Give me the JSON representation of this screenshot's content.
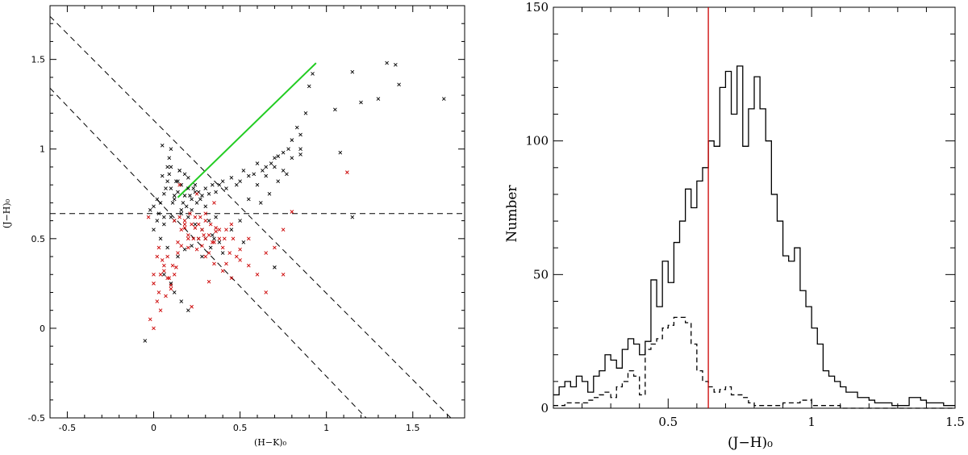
{
  "chart_data": [
    {
      "type": "scatter",
      "title": "",
      "xlabel": "(H−K)₀",
      "ylabel": "(J−H)₀",
      "xlim": [
        -0.6,
        1.8
      ],
      "ylim": [
        -0.5,
        1.8
      ],
      "x_ticks": [
        "-0.5",
        "0",
        "0.5",
        "1",
        "1.5"
      ],
      "x_tick_values": [
        -0.5,
        0,
        0.5,
        1,
        1.5
      ],
      "y_ticks": [
        "-0.5",
        "0",
        "0.5",
        "1",
        "1.5"
      ],
      "y_tick_values": [
        -0.5,
        0,
        0.5,
        1,
        1.5
      ],
      "grid": false,
      "colors": {
        "black_points": "#000000",
        "red_points": "#cc0000",
        "green_line": "#22cc22",
        "lines": "#000000"
      },
      "lines": [
        {
          "name": "",
          "style": "dashed",
          "color": "#000000",
          "x": [
            -0.6,
            1.8
          ],
          "y": [
            0.64,
            0.64
          ]
        },
        {
          "name": "",
          "style": "dashed",
          "color": "#000000",
          "x": [
            -0.6,
            1.72
          ],
          "y": [
            1.74,
            -0.5
          ]
        },
        {
          "name": "",
          "style": "dashed",
          "color": "#000000",
          "x": [
            -0.6,
            1.23
          ],
          "y": [
            1.34,
            -0.5
          ]
        },
        {
          "name": "",
          "style": "solid",
          "color": "#22cc22",
          "x": [
            0.14,
            0.94
          ],
          "y": [
            0.73,
            1.48
          ]
        }
      ],
      "series": [
        {
          "name": "",
          "color": "#000000",
          "marker": "x",
          "x": [
            0.92,
            0.9,
            0.88,
            1.15,
            1.35,
            1.4,
            1.42,
            1.68,
            1.3,
            1.2,
            1.05,
            1.08,
            0.83,
            0.85,
            0.8,
            0.78,
            0.75,
            0.72,
            0.7,
            0.68,
            0.65,
            0.63,
            0.6,
            0.58,
            0.55,
            0.52,
            0.5,
            0.48,
            0.45,
            0.42,
            0.4,
            0.38,
            0.36,
            0.34,
            0.32,
            0.3,
            0.28,
            0.26,
            0.24,
            0.22,
            0.2,
            0.18,
            0.16,
            0.14,
            0.12,
            0.1,
            0.08,
            0.06,
            0.04,
            0.02,
            0.0,
            -0.02,
            0.05,
            0.1,
            0.15,
            0.2,
            0.25,
            0.3,
            0.07,
            0.12,
            0.17,
            0.22,
            0.27,
            0.09,
            0.14,
            0.19,
            0.24,
            0.11,
            0.16,
            0.21,
            0.13,
            0.18,
            0.23,
            0.08,
            0.03,
            0.06,
            0.55,
            0.6,
            0.65,
            0.7,
            0.75,
            0.8,
            0.85,
            0.62,
            0.67,
            0.72,
            0.77,
            0.5,
            0.45,
            0.35,
            0.33,
            0.28,
            0.4,
            0.52,
            0.7,
            0.02,
            0.06,
            0.1,
            0.0,
            0.04,
            0.08,
            0.12,
            0.16,
            0.2,
            0.24,
            0.28,
            0.32,
            0.36,
            0.3,
            0.34,
            0.38,
            0.26,
            0.22,
            0.18,
            0.14,
            0.1,
            0.06,
            0.12,
            0.16,
            0.2,
            0.85,
            0.1,
            1.15,
            0.15,
            0.05,
            0.09,
            -0.05
          ],
          "y": [
            1.42,
            1.35,
            1.2,
            1.43,
            1.48,
            1.47,
            1.36,
            1.28,
            1.28,
            1.26,
            1.22,
            0.98,
            1.12,
            1.08,
            1.05,
            1.0,
            0.98,
            0.96,
            0.95,
            0.92,
            0.9,
            0.88,
            0.92,
            0.86,
            0.85,
            0.88,
            0.82,
            0.8,
            0.84,
            0.78,
            0.82,
            0.8,
            0.76,
            0.8,
            0.75,
            0.78,
            0.74,
            0.76,
            0.8,
            0.72,
            0.78,
            0.74,
            0.8,
            0.76,
            0.72,
            0.78,
            0.82,
            0.75,
            0.7,
            0.72,
            0.68,
            0.66,
            0.85,
            0.9,
            0.88,
            0.84,
            0.7,
            0.68,
            0.78,
            0.74,
            0.7,
            0.66,
            0.72,
            0.86,
            0.82,
            0.68,
            0.76,
            0.7,
            0.66,
            0.74,
            0.82,
            0.86,
            0.78,
            0.9,
            0.64,
            0.62,
            0.72,
            0.8,
            0.85,
            0.9,
            0.88,
            0.95,
            1.0,
            0.7,
            0.75,
            0.82,
            0.86,
            0.6,
            0.55,
            0.5,
            0.45,
            0.4,
            0.42,
            0.48,
            0.34,
            0.6,
            0.58,
            0.62,
            0.55,
            0.5,
            0.45,
            0.6,
            0.64,
            0.62,
            0.58,
            0.55,
            0.6,
            0.62,
            0.5,
            0.52,
            0.48,
            0.5,
            0.46,
            0.44,
            0.4,
            0.25,
            0.3,
            0.2,
            0.15,
            0.1,
            0.97,
            1.0,
            0.62,
            0.88,
            1.02,
            0.95,
            -0.07
          ]
        },
        {
          "name": "",
          "color": "#cc0000",
          "marker": "x",
          "x": [
            -0.02,
            0.0,
            0.02,
            0.04,
            0.06,
            0.08,
            0.1,
            0.12,
            0.14,
            0.16,
            0.18,
            0.2,
            0.22,
            0.24,
            0.26,
            0.28,
            0.3,
            0.32,
            0.34,
            0.36,
            0.38,
            0.4,
            0.42,
            0.44,
            0.46,
            0.48,
            0.5,
            0.12,
            0.15,
            0.18,
            0.21,
            0.24,
            0.27,
            0.3,
            0.33,
            0.36,
            0.2,
            0.23,
            0.26,
            0.29,
            0.32,
            0.35,
            0.38,
            0.41,
            0.0,
            0.03,
            0.06,
            0.09,
            0.05,
            0.08,
            0.11,
            0.14,
            0.02,
            0.04,
            0.07,
            0.1,
            0.13,
            0.16,
            0.2,
            0.25,
            0.3,
            0.35,
            0.4,
            0.45,
            0.5,
            0.55,
            0.6,
            0.65,
            0.7,
            0.75,
            0.8,
            0.15,
            0.25,
            0.35,
            -0.03,
            0.3,
            0.45,
            0.55,
            0.65,
            0.75,
            0.18,
            0.28,
            1.12,
            0.03,
            0.0,
            0.22,
            0.32,
            0.42
          ],
          "y": [
            0.05,
            0.25,
            0.4,
            0.3,
            0.35,
            0.28,
            0.22,
            0.3,
            0.48,
            0.55,
            0.6,
            0.52,
            0.58,
            0.62,
            0.5,
            0.55,
            0.6,
            0.52,
            0.48,
            0.56,
            0.5,
            0.45,
            0.55,
            0.42,
            0.5,
            0.4,
            0.44,
            0.6,
            0.62,
            0.58,
            0.64,
            0.56,
            0.62,
            0.5,
            0.58,
            0.54,
            0.45,
            0.5,
            0.58,
            0.52,
            0.42,
            0.48,
            0.55,
            0.5,
            0.3,
            0.2,
            0.32,
            0.28,
            0.38,
            0.4,
            0.35,
            0.42,
            0.15,
            0.1,
            0.18,
            0.24,
            0.34,
            0.46,
            0.5,
            0.44,
            0.4,
            0.36,
            0.32,
            0.28,
            0.38,
            0.35,
            0.3,
            0.42,
            0.45,
            0.55,
            0.65,
            0.8,
            0.75,
            0.7,
            0.62,
            0.64,
            0.58,
            0.5,
            0.2,
            0.3,
            0.56,
            0.46,
            0.87,
            0.45,
            0.0,
            0.12,
            0.26,
            0.36
          ]
        }
      ]
    },
    {
      "type": "line",
      "title": "",
      "xlabel": "(J−H)₀",
      "ylabel": "Number",
      "xlim": [
        0.1,
        1.5
      ],
      "ylim": [
        0,
        150
      ],
      "x_ticks": [
        "0.5",
        "1",
        "1.5"
      ],
      "x_tick_values": [
        0.5,
        1,
        1.5
      ],
      "y_ticks": [
        "0",
        "50",
        "100",
        "150"
      ],
      "y_tick_values": [
        0,
        50,
        100,
        150
      ],
      "grid": false,
      "vline": {
        "x": 0.64,
        "color": "#cc0000"
      },
      "series": [
        {
          "name": "",
          "style": "solid",
          "color": "#000000",
          "bin_edges": [
            0.1,
            0.12,
            0.14,
            0.16,
            0.18,
            0.2,
            0.22,
            0.24,
            0.26,
            0.28,
            0.3,
            0.32,
            0.34,
            0.36,
            0.38,
            0.4,
            0.42,
            0.44,
            0.46,
            0.48,
            0.5,
            0.52,
            0.54,
            0.56,
            0.58,
            0.6,
            0.62,
            0.64,
            0.66,
            0.68,
            0.7,
            0.72,
            0.74,
            0.76,
            0.78,
            0.8,
            0.82,
            0.84,
            0.86,
            0.88,
            0.9,
            0.92,
            0.94,
            0.96,
            0.98,
            1.0,
            1.02,
            1.04,
            1.06,
            1.08,
            1.1,
            1.12,
            1.14,
            1.16,
            1.18,
            1.2,
            1.22,
            1.24,
            1.26,
            1.28,
            1.3,
            1.32,
            1.34,
            1.36,
            1.38,
            1.4,
            1.42,
            1.44,
            1.46,
            1.48,
            1.5
          ],
          "counts": [
            5,
            8,
            10,
            8,
            12,
            10,
            6,
            12,
            14,
            20,
            18,
            15,
            22,
            26,
            24,
            20,
            25,
            48,
            38,
            55,
            47,
            62,
            70,
            82,
            75,
            85,
            90,
            100,
            98,
            120,
            126,
            110,
            128,
            98,
            112,
            124,
            112,
            100,
            80,
            70,
            57,
            55,
            60,
            44,
            38,
            30,
            24,
            14,
            12,
            10,
            8,
            6,
            6,
            4,
            4,
            3,
            2,
            2,
            2,
            1,
            1,
            1,
            4,
            4,
            3,
            2,
            2,
            2,
            1,
            1
          ]
        },
        {
          "name": "",
          "style": "dashed",
          "color": "#000000",
          "bin_edges": [
            0.1,
            0.12,
            0.14,
            0.16,
            0.18,
            0.2,
            0.22,
            0.24,
            0.26,
            0.28,
            0.3,
            0.32,
            0.34,
            0.36,
            0.38,
            0.4,
            0.42,
            0.44,
            0.46,
            0.48,
            0.5,
            0.52,
            0.54,
            0.56,
            0.58,
            0.6,
            0.62,
            0.64,
            0.66,
            0.68,
            0.7,
            0.72,
            0.74,
            0.76,
            0.78,
            0.8,
            0.82,
            0.84,
            0.86,
            0.88,
            0.9,
            0.92,
            0.94,
            0.96,
            0.98,
            1.0,
            1.02,
            1.04,
            1.06,
            1.08,
            1.1,
            1.12,
            1.14,
            1.16,
            1.18,
            1.2,
            1.22,
            1.24,
            1.26,
            1.28,
            1.3,
            1.32,
            1.34,
            1.36,
            1.38,
            1.4,
            1.42,
            1.44,
            1.46,
            1.48,
            1.5
          ],
          "counts": [
            1,
            1,
            2,
            2,
            2,
            2,
            3,
            4,
            5,
            6,
            4,
            8,
            10,
            14,
            12,
            5,
            22,
            24,
            26,
            30,
            31,
            34,
            34,
            32,
            24,
            14,
            10,
            8,
            6,
            7,
            8,
            5,
            5,
            4,
            2,
            1,
            1,
            1,
            1,
            1,
            2,
            2,
            2,
            3,
            3,
            1,
            1,
            1,
            1,
            1,
            0,
            0,
            0,
            0,
            0,
            0,
            0,
            0,
            0,
            0,
            0,
            0,
            0,
            0,
            0,
            0,
            0,
            0,
            0,
            0
          ]
        }
      ]
    }
  ]
}
